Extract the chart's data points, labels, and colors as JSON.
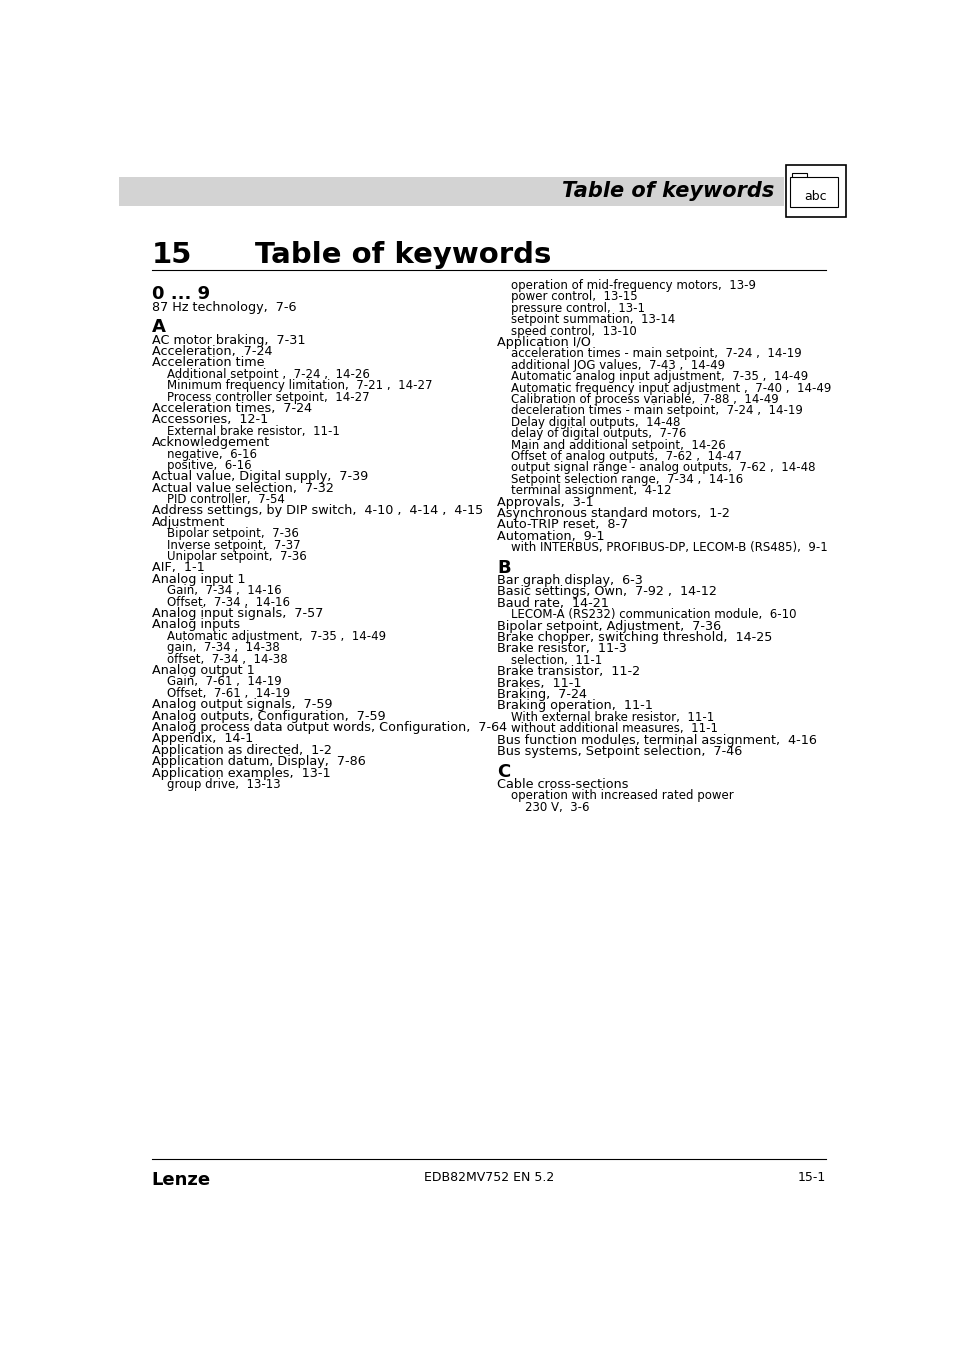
{
  "title_chapter": "15",
  "title_text": "Table of keywords",
  "header_text": "Table of keywords",
  "footer_left": "Lenze",
  "footer_center": "EDB82MV752 EN 5.2",
  "footer_right": "15-1",
  "header_bg_color": "#d3d3d3",
  "left_column": [
    {
      "type": "section",
      "text": "0 ... 9"
    },
    {
      "type": "entry",
      "text": "87 Hz technology,  7-6",
      "indent": 0
    },
    {
      "type": "section",
      "text": "A"
    },
    {
      "type": "entry",
      "text": "AC motor braking,  7-31",
      "indent": 0
    },
    {
      "type": "entry",
      "text": "Acceleration,  7-24",
      "indent": 0
    },
    {
      "type": "entry",
      "text": "Acceleration time",
      "indent": 0
    },
    {
      "type": "entry",
      "text": "Additional setpoint ,  7-24 ,  14-26",
      "indent": 1
    },
    {
      "type": "entry",
      "text": "Minimum frequency limitation,  7-21 ,  14-27",
      "indent": 1
    },
    {
      "type": "entry",
      "text": "Process controller setpoint,  14-27",
      "indent": 1
    },
    {
      "type": "entry",
      "text": "Acceleration times,  7-24",
      "indent": 0
    },
    {
      "type": "entry",
      "text": "Accessories,  12-1",
      "indent": 0
    },
    {
      "type": "entry",
      "text": "External brake resistor,  11-1",
      "indent": 1
    },
    {
      "type": "entry",
      "text": "Acknowledgement",
      "indent": 0
    },
    {
      "type": "entry",
      "text": "negative,  6-16",
      "indent": 1
    },
    {
      "type": "entry",
      "text": "positive,  6-16",
      "indent": 1
    },
    {
      "type": "entry",
      "text": "Actual value, Digital supply,  7-39",
      "indent": 0
    },
    {
      "type": "entry",
      "text": "Actual value selection,  7-32",
      "indent": 0
    },
    {
      "type": "entry",
      "text": "PID controller,  7-54",
      "indent": 1
    },
    {
      "type": "entry",
      "text": "Address settings, by DIP switch,  4-10 ,  4-14 ,  4-15",
      "indent": 0
    },
    {
      "type": "entry",
      "text": "Adjustment",
      "indent": 0
    },
    {
      "type": "entry",
      "text": "Bipolar setpoint,  7-36",
      "indent": 1
    },
    {
      "type": "entry",
      "text": "Inverse setpoint,  7-37",
      "indent": 1
    },
    {
      "type": "entry",
      "text": "Unipolar setpoint,  7-36",
      "indent": 1
    },
    {
      "type": "entry",
      "text": "AIF,  1-1",
      "indent": 0
    },
    {
      "type": "entry",
      "text": "Analog input 1",
      "indent": 0
    },
    {
      "type": "entry",
      "text": "Gain,  7-34 ,  14-16",
      "indent": 1
    },
    {
      "type": "entry",
      "text": "Offset,  7-34 ,  14-16",
      "indent": 1
    },
    {
      "type": "entry",
      "text": "Analog input signals,  7-57",
      "indent": 0
    },
    {
      "type": "entry",
      "text": "Analog inputs",
      "indent": 0
    },
    {
      "type": "entry",
      "text": "Automatic adjustment,  7-35 ,  14-49",
      "indent": 1
    },
    {
      "type": "entry",
      "text": "gain,  7-34 ,  14-38",
      "indent": 1
    },
    {
      "type": "entry",
      "text": "offset,  7-34 ,  14-38",
      "indent": 1
    },
    {
      "type": "entry",
      "text": "Analog output 1",
      "indent": 0
    },
    {
      "type": "entry",
      "text": "Gain,  7-61 ,  14-19",
      "indent": 1
    },
    {
      "type": "entry",
      "text": "Offset,  7-61 ,  14-19",
      "indent": 1
    },
    {
      "type": "entry",
      "text": "Analog output signals,  7-59",
      "indent": 0
    },
    {
      "type": "entry",
      "text": "Analog outputs, Configuration,  7-59",
      "indent": 0
    },
    {
      "type": "entry",
      "text": "Analog process data output words, Configuration,  7-64",
      "indent": 0
    },
    {
      "type": "entry",
      "text": "Appendix,  14-1",
      "indent": 0
    },
    {
      "type": "entry",
      "text": "Application as directed,  1-2",
      "indent": 0
    },
    {
      "type": "entry",
      "text": "Application datum, Display,  7-86",
      "indent": 0
    },
    {
      "type": "entry",
      "text": "Application examples,  13-1",
      "indent": 0
    },
    {
      "type": "entry",
      "text": "group drive,  13-13",
      "indent": 1
    }
  ],
  "right_column": [
    {
      "type": "entry",
      "text": "operation of mid-frequency motors,  13-9",
      "indent": 1
    },
    {
      "type": "entry",
      "text": "power control,  13-15",
      "indent": 1
    },
    {
      "type": "entry",
      "text": "pressure control,  13-1",
      "indent": 1
    },
    {
      "type": "entry",
      "text": "setpoint summation,  13-14",
      "indent": 1
    },
    {
      "type": "entry",
      "text": "speed control,  13-10",
      "indent": 1
    },
    {
      "type": "entry",
      "text": "Application I/O",
      "indent": 0
    },
    {
      "type": "entry",
      "text": "acceleration times - main setpoint,  7-24 ,  14-19",
      "indent": 1
    },
    {
      "type": "entry",
      "text": "additional JOG values,  7-43 ,  14-49",
      "indent": 1
    },
    {
      "type": "entry",
      "text": "Automatic analog input adjustment,  7-35 ,  14-49",
      "indent": 1
    },
    {
      "type": "entry",
      "text": "Automatic frequency input adjustment ,  7-40 ,  14-49",
      "indent": 1
    },
    {
      "type": "entry",
      "text": "Calibration of process variable,  7-88 ,  14-49",
      "indent": 1
    },
    {
      "type": "entry",
      "text": "deceleration times - main setpoint,  7-24 ,  14-19",
      "indent": 1
    },
    {
      "type": "entry",
      "text": "Delay digital outputs,  14-48",
      "indent": 1
    },
    {
      "type": "entry",
      "text": "delay of digital outputs,  7-76",
      "indent": 1
    },
    {
      "type": "entry",
      "text": "Main and additional setpoint,  14-26",
      "indent": 1
    },
    {
      "type": "entry",
      "text": "Offset of analog outputs,  7-62 ,  14-47",
      "indent": 1
    },
    {
      "type": "entry",
      "text": "output signal range - analog outputs,  7-62 ,  14-48",
      "indent": 1
    },
    {
      "type": "entry",
      "text": "Setpoint selection range,  7-34 ,  14-16",
      "indent": 1
    },
    {
      "type": "entry",
      "text": "terminal assignment,  4-12",
      "indent": 1
    },
    {
      "type": "entry",
      "text": "Approvals,  3-1",
      "indent": 0
    },
    {
      "type": "entry",
      "text": "Asynchronous standard motors,  1-2",
      "indent": 0
    },
    {
      "type": "entry",
      "text": "Auto-TRIP reset,  8-7",
      "indent": 0
    },
    {
      "type": "entry",
      "text": "Automation,  9-1",
      "indent": 0
    },
    {
      "type": "entry",
      "text": "with INTERBUS, PROFIBUS-DP, LECOM-B (RS485),  9-1",
      "indent": 1
    },
    {
      "type": "section",
      "text": "B"
    },
    {
      "type": "entry",
      "text": "Bar graph display,  6-3",
      "indent": 0
    },
    {
      "type": "entry",
      "text": "Basic settings, Own,  7-92 ,  14-12",
      "indent": 0
    },
    {
      "type": "entry",
      "text": "Baud rate,  14-21",
      "indent": 0
    },
    {
      "type": "entry",
      "text": "LECOM-A (RS232) communication module,  6-10",
      "indent": 1
    },
    {
      "type": "entry",
      "text": "Bipolar setpoint, Adjustment,  7-36",
      "indent": 0
    },
    {
      "type": "entry",
      "text": "Brake chopper, switching threshold,  14-25",
      "indent": 0
    },
    {
      "type": "entry",
      "text": "Brake resistor,  11-3",
      "indent": 0
    },
    {
      "type": "entry",
      "text": "selection,  11-1",
      "indent": 1
    },
    {
      "type": "entry",
      "text": "Brake transistor,  11-2",
      "indent": 0
    },
    {
      "type": "entry",
      "text": "Brakes,  11-1",
      "indent": 0
    },
    {
      "type": "entry",
      "text": "Braking,  7-24",
      "indent": 0
    },
    {
      "type": "entry",
      "text": "Braking operation,  11-1",
      "indent": 0
    },
    {
      "type": "entry",
      "text": "With external brake resistor,  11-1",
      "indent": 1
    },
    {
      "type": "entry",
      "text": "without additional measures,  11-1",
      "indent": 1
    },
    {
      "type": "entry",
      "text": "Bus function modules, terminal assignment,  4-16",
      "indent": 0
    },
    {
      "type": "entry",
      "text": "Bus systems, Setpoint selection,  7-46",
      "indent": 0
    },
    {
      "type": "section",
      "text": "C"
    },
    {
      "type": "entry",
      "text": "Cable cross-sections",
      "indent": 0
    },
    {
      "type": "entry",
      "text": "operation with increased rated power",
      "indent": 1
    },
    {
      "type": "entry",
      "text": "230 V,  3-6",
      "indent": 2
    }
  ]
}
